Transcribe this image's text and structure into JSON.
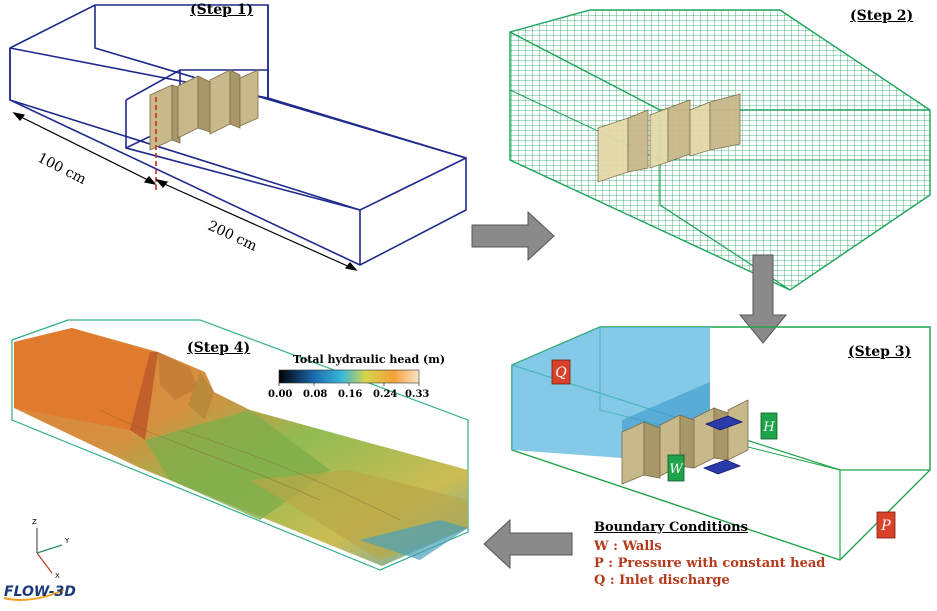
{
  "steps": {
    "step1": "(Step 1)",
    "step2": "(Step 2)",
    "step3": "(Step 3)",
    "step4": "(Step 4)"
  },
  "dimensions": {
    "width_label": "100 cm",
    "length_label": "200 cm"
  },
  "colorbar": {
    "title": "Total hydraulic head (m)",
    "ticks": [
      "0.00",
      "0.08",
      "0.16",
      "0.24",
      "0.33"
    ],
    "colors": [
      "#000000",
      "#1b6bb0",
      "#38b9d8",
      "#d7d34a",
      "#f2a13a",
      "#fbe3c7"
    ]
  },
  "boundary_conditions": {
    "title": "Boundary Conditions",
    "items": [
      {
        "text": "W : Walls"
      },
      {
        "text": "P :  Pressure with constant head"
      },
      {
        "text": "Q : Inlet discharge"
      }
    ],
    "markers": {
      "q": "Q",
      "p": "P",
      "w": "W",
      "h": "H"
    },
    "colors": {
      "q": "#d9412b",
      "p": "#d9412b",
      "w": "#1fa34a",
      "h": "#1fa34a",
      "flow": "#5bb8e0",
      "outline": "#1fa34a"
    }
  },
  "axes": {
    "x": "X",
    "y": "Y",
    "z": "Z"
  },
  "logo": "FLOW-3D",
  "colors": {
    "step1_outline": "#1f2a8c",
    "mesh": "#1ba35a",
    "block": "#c8b98a",
    "arrow": "#8a8a8a",
    "section_line": "#d4231c"
  }
}
